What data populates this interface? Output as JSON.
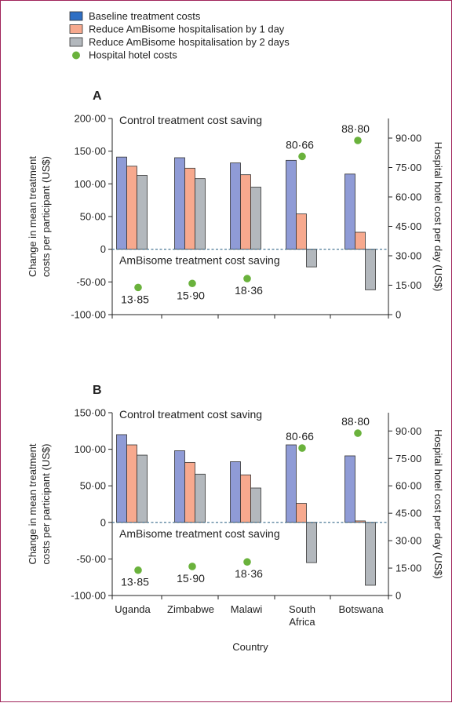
{
  "colors": {
    "baseline": "#8f9bd6",
    "day1": "#f7a98e",
    "day2": "#b3b8bd",
    "hotel": "#6ab23c",
    "axis": "#222222",
    "zero_line": "#3a6c8c",
    "frame": "#a0245a"
  },
  "legend": [
    {
      "label": "Baseline treatment costs",
      "marker": "square",
      "color": "#2e6fc4"
    },
    {
      "label": "Reduce AmBisome hospitalisation by 1 day",
      "marker": "square",
      "color": "#f7a98e"
    },
    {
      "label": "Reduce AmBisome hospitalisation by 2 days",
      "marker": "square",
      "color": "#b3b8bd"
    },
    {
      "label": "Hospital hotel costs",
      "marker": "circle",
      "color": "#6ab23c"
    }
  ],
  "chart_data": [
    {
      "type": "bar",
      "panel": "A",
      "categories": [
        "Uganda",
        "Zimbabwe",
        "Malawi",
        "South Africa",
        "Botswana"
      ],
      "series": [
        {
          "name": "Baseline treatment costs",
          "values": [
            141,
            140,
            132,
            136,
            115
          ]
        },
        {
          "name": "Reduce AmBisome hospitalisation by 1 day",
          "values": [
            127,
            124,
            114,
            54,
            26
          ]
        },
        {
          "name": "Reduce AmBisome hospitalisation by 2 days",
          "values": [
            113,
            108,
            95,
            -27,
            -62
          ]
        }
      ],
      "hotel_costs": {
        "name": "Hospital hotel costs",
        "values": [
          13.85,
          15.9,
          18.36,
          80.66,
          88.8
        ],
        "labels": [
          "13·85",
          "15·90",
          "18·36",
          "80·66",
          "88·80"
        ]
      },
      "ylim": [
        -100,
        200
      ],
      "yticks": [
        "-100·00",
        "-50·00",
        "0",
        "50·00",
        "100·00",
        "150·00",
        "200·00"
      ],
      "y2lim": [
        0,
        100
      ],
      "y2ticks": [
        "0",
        "15·00",
        "30·00",
        "45·00",
        "60·00",
        "75·00",
        "90·00"
      ],
      "ylabel": [
        "Change in mean treatment",
        "costs per participant (US$)"
      ],
      "y2label": "Hospital hotel cost per day (US$)",
      "annotations": {
        "top": "Control treatment cost saving",
        "bottom": "AmBisome treatment cost saving"
      }
    },
    {
      "type": "bar",
      "panel": "B",
      "categories": [
        "Uganda",
        "Zimbabwe",
        "Malawi",
        "South Africa",
        "Botswana"
      ],
      "category_labels": [
        [
          "Uganda"
        ],
        [
          "Zimbabwe"
        ],
        [
          "Malawi"
        ],
        [
          "South",
          "Africa"
        ],
        [
          "Botswana"
        ]
      ],
      "series": [
        {
          "name": "Baseline treatment costs",
          "values": [
            120,
            98,
            83,
            106,
            91
          ]
        },
        {
          "name": "Reduce AmBisome hospitalisation by 1 day",
          "values": [
            106,
            82,
            65,
            26,
            2
          ]
        },
        {
          "name": "Reduce AmBisome hospitalisation by 2 days",
          "values": [
            92,
            66,
            47,
            -55,
            -86
          ]
        }
      ],
      "hotel_costs": {
        "name": "Hospital hotel costs",
        "values": [
          13.85,
          15.9,
          18.36,
          80.66,
          88.8
        ],
        "labels": [
          "13·85",
          "15·90",
          "18·36",
          "80·66",
          "88·80"
        ]
      },
      "ylim": [
        -100,
        150
      ],
      "yticks": [
        "-100·00",
        "-50·00",
        "0",
        "50·00",
        "100·00",
        "150·00"
      ],
      "y2lim": [
        0,
        100
      ],
      "y2ticks": [
        "0",
        "15·00",
        "30·00",
        "45·00",
        "60·00",
        "75·00",
        "90·00"
      ],
      "ylabel": [
        "Change in mean treatment",
        "costs per participant (US$)"
      ],
      "y2label": "Hospital hotel cost per day (US$)",
      "xlabel": "Country",
      "annotations": {
        "top": "Control treatment cost saving",
        "bottom": "AmBisome treatment cost saving"
      }
    }
  ]
}
